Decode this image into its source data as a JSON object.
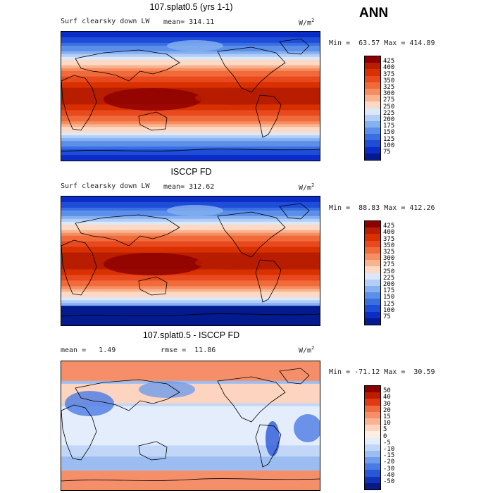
{
  "season": "ANN",
  "units_main": "W/m",
  "units_sup": "2",
  "panels": [
    {
      "title": "107.splat0.5 (yrs 1-1)",
      "variable": "Surf clearsky down LW",
      "mean_text": "mean= 314.11",
      "minmax_text": "Min =  63.57 Max = 414.89",
      "colorbar": {
        "labels": [
          "425",
          "400",
          "375",
          "350",
          "325",
          "300",
          "275",
          "250",
          "225",
          "200",
          "175",
          "150",
          "125",
          "100",
          "75"
        ],
        "colors": [
          "#8b0000",
          "#b81d00",
          "#d93000",
          "#e8491e",
          "#f06a3a",
          "#f58e62",
          "#f9b38f",
          "#fbd9c4",
          "#dbe8fa",
          "#b3cef6",
          "#86b1f0",
          "#5c8fea",
          "#3a6fe2",
          "#1e4dd8",
          "#0b2cc6",
          "#041a8f"
        ]
      }
    },
    {
      "title": "ISCCP FD",
      "variable": "Surf clearsky down LW",
      "mean_text": "mean= 312.62",
      "minmax_text": "Min =  88.83 Max = 412.26",
      "colorbar": {
        "labels": [
          "425",
          "400",
          "375",
          "350",
          "325",
          "300",
          "275",
          "250",
          "225",
          "200",
          "175",
          "150",
          "125",
          "100",
          "75"
        ],
        "colors": [
          "#8b0000",
          "#b81d00",
          "#d93000",
          "#e8491e",
          "#f06a3a",
          "#f58e62",
          "#f9b38f",
          "#fbd9c4",
          "#dbe8fa",
          "#b3cef6",
          "#86b1f0",
          "#5c8fea",
          "#3a6fe2",
          "#1e4dd8",
          "#0b2cc6",
          "#041a8f"
        ]
      }
    },
    {
      "title": "107.splat0.5 - ISCCP FD",
      "mean_text": "mean =   1.49",
      "rmse_text": "rmse =  11.86",
      "minmax_text": "Min = -71.12 Max =  30.59",
      "colorbar": {
        "labels": [
          "50",
          "40",
          "30",
          "20",
          "15",
          "10",
          "5",
          "0",
          "-5",
          "-10",
          "-15",
          "-20",
          "-30",
          "-40",
          "-50"
        ],
        "colors": [
          "#8b0000",
          "#c01a00",
          "#e03a14",
          "#ee6a3f",
          "#f58f69",
          "#f9b393",
          "#fcd4bf",
          "#fdeee4",
          "#e4edfb",
          "#c2d7f7",
          "#9bbdf2",
          "#6f9cec",
          "#4a7ae4",
          "#2a57d8",
          "#1233b8",
          "#061b86"
        ]
      }
    }
  ]
}
